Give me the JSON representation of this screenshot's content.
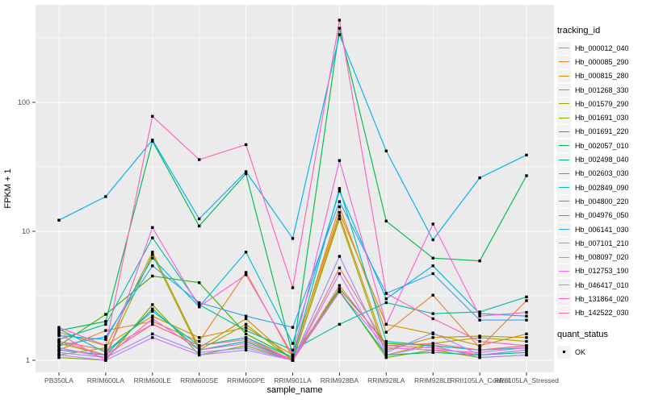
{
  "figure": {
    "background": "#FFFFFF",
    "panel_background": "#EBEBEB",
    "gridline_color": "#FFFFFF",
    "tick_text_color": "#4D4D4D",
    "tick_mark_color": "#333333",
    "point_color": "#000000",
    "legend_key_background": "#F2F2F2"
  },
  "axes": {
    "x_title": "sample_name",
    "y_title": "FPKM + 1",
    "y_tick_labels": [
      "1",
      "10",
      "100"
    ],
    "y_scale": "log10"
  },
  "legend": {
    "tracking_title": "tracking_id",
    "quant_title": "quant_status",
    "quant_value": "OK"
  },
  "chart_data": {
    "type": "line",
    "title": "",
    "xlabel": "sample_name",
    "ylabel": "FPKM + 1",
    "y_scale": "log10",
    "ylim": [
      1,
      570
    ],
    "y_ticks": [
      1,
      10,
      100
    ],
    "y_minor_ticks": [
      3.162,
      31.62,
      316.2
    ],
    "grid": true,
    "legend_position": "right",
    "marker": "black-square",
    "categories": [
      "PB350LA",
      "RRIM600LA",
      "RRIM600LE",
      "RRIM600SE",
      "RRIM600PE",
      "RRIM901LA",
      "RRIM928BA",
      "RRIM928LA",
      "RRIM928LE",
      "RRII105LA_Control",
      "RRII105LA_Stressed"
    ],
    "series": [
      {
        "name": "Hb_000012_040",
        "color": "#F8766D",
        "values": [
          1.4,
          1.2,
          1.9,
          1.3,
          1.5,
          1.0,
          5.2,
          1.3,
          1.25,
          1.1,
          1.2
        ]
      },
      {
        "name": "Hb_000085_290",
        "color": "#EA8331",
        "values": [
          1.2,
          1.7,
          2.0,
          1.4,
          4.8,
          1.05,
          15.5,
          1.65,
          3.2,
          1.25,
          2.9
        ]
      },
      {
        "name": "Hb_000815_280",
        "color": "#D89000",
        "values": [
          1.65,
          1.3,
          2.2,
          1.5,
          1.8,
          1.1,
          14.0,
          1.9,
          1.6,
          1.3,
          1.6
        ]
      },
      {
        "name": "Hb_001268_330",
        "color": "#C09B00",
        "values": [
          1.1,
          1.25,
          6.9,
          1.25,
          2.1,
          1.0,
          13.2,
          1.2,
          1.5,
          1.54,
          1.5
        ]
      },
      {
        "name": "Hb_001579_290",
        "color": "#A3A500",
        "values": [
          1.35,
          1.1,
          6.6,
          1.2,
          1.9,
          1.0,
          12.5,
          1.1,
          1.35,
          1.5,
          1.4
        ]
      },
      {
        "name": "Hb_001691_030",
        "color": "#7CAE00",
        "values": [
          1.05,
          1.0,
          2.7,
          1.1,
          1.3,
          1.0,
          3.5,
          1.05,
          1.2,
          1.05,
          1.1
        ]
      },
      {
        "name": "Hb_001691_220",
        "color": "#39B600",
        "values": [
          1.3,
          2.27,
          4.5,
          4.0,
          1.6,
          1.05,
          3.6,
          1.35,
          1.3,
          1.2,
          1.3
        ]
      },
      {
        "name": "Hb_002057_010",
        "color": "#00BB4E",
        "values": [
          1.7,
          2.0,
          50,
          11,
          28,
          1.1,
          376,
          12,
          6.2,
          5.9,
          27
        ]
      },
      {
        "name": "Hb_002498_040",
        "color": "#00BF7D",
        "values": [
          1.2,
          1.1,
          2.5,
          1.2,
          1.4,
          1.0,
          3.4,
          1.1,
          1.15,
          1.1,
          1.15
        ]
      },
      {
        "name": "Hb_002603_030",
        "color": "#00C1A3",
        "values": [
          1.45,
          1.9,
          8.9,
          2.7,
          1.7,
          1.2,
          1.9,
          2.8,
          2.3,
          2.37,
          3.1
        ]
      },
      {
        "name": "Hb_002849_090",
        "color": "#00BFC4",
        "values": [
          1.75,
          1.15,
          2.4,
          1.3,
          1.5,
          1.05,
          21.5,
          1.4,
          1.3,
          1.2,
          1.25
        ]
      },
      {
        "name": "Hb_004800_220",
        "color": "#00BADE",
        "values": [
          1.55,
          1.45,
          6.2,
          2.6,
          6.9,
          1.35,
          20.5,
          3.0,
          5.4,
          2.3,
          2.2
        ]
      },
      {
        "name": "Hb_004976_050",
        "color": "#00B0F6",
        "values": [
          12.2,
          18.6,
          51,
          12.5,
          29,
          8.8,
          335,
          42,
          8.6,
          26,
          39
        ]
      },
      {
        "name": "Hb_006141_030",
        "color": "#35A2FF",
        "values": [
          1.3,
          1.52,
          5.4,
          2.8,
          2.2,
          1.8,
          17,
          3.3,
          4.7,
          2.05,
          2.05
        ]
      },
      {
        "name": "Hb_007101_210",
        "color": "#9590FF",
        "values": [
          1.15,
          1.05,
          1.6,
          1.15,
          1.25,
          1.0,
          6.4,
          1.15,
          1.63,
          1.1,
          1.2
        ]
      },
      {
        "name": "Hb_008097_020",
        "color": "#C77CFF",
        "values": [
          1.1,
          1.0,
          1.5,
          1.1,
          1.2,
          1.0,
          4.7,
          1.1,
          1.3,
          1.05,
          1.1
        ]
      },
      {
        "name": "Hb_012753_190",
        "color": "#E76BF3",
        "values": [
          1.25,
          1.05,
          2.1,
          1.2,
          1.35,
          1.0,
          3.4,
          1.25,
          1.2,
          1.15,
          1.25
        ]
      },
      {
        "name": "Hb_046417_010",
        "color": "#FA62DB",
        "values": [
          1.6,
          1.0,
          10.7,
          2.6,
          4.6,
          1.1,
          35.4,
          1.9,
          11.4,
          2.2,
          2.35
        ]
      },
      {
        "name": "Hb_131864_020",
        "color": "#FF62BC",
        "values": [
          1.8,
          1.3,
          78,
          36,
          47,
          3.65,
          434,
          3.3,
          2.1,
          1.4,
          1.3
        ]
      },
      {
        "name": "Hb_142522_030",
        "color": "#FF6A98",
        "values": [
          1.4,
          1.1,
          1.9,
          1.3,
          1.45,
          1.0,
          3.8,
          1.3,
          1.35,
          1.2,
          1.3
        ]
      }
    ]
  }
}
